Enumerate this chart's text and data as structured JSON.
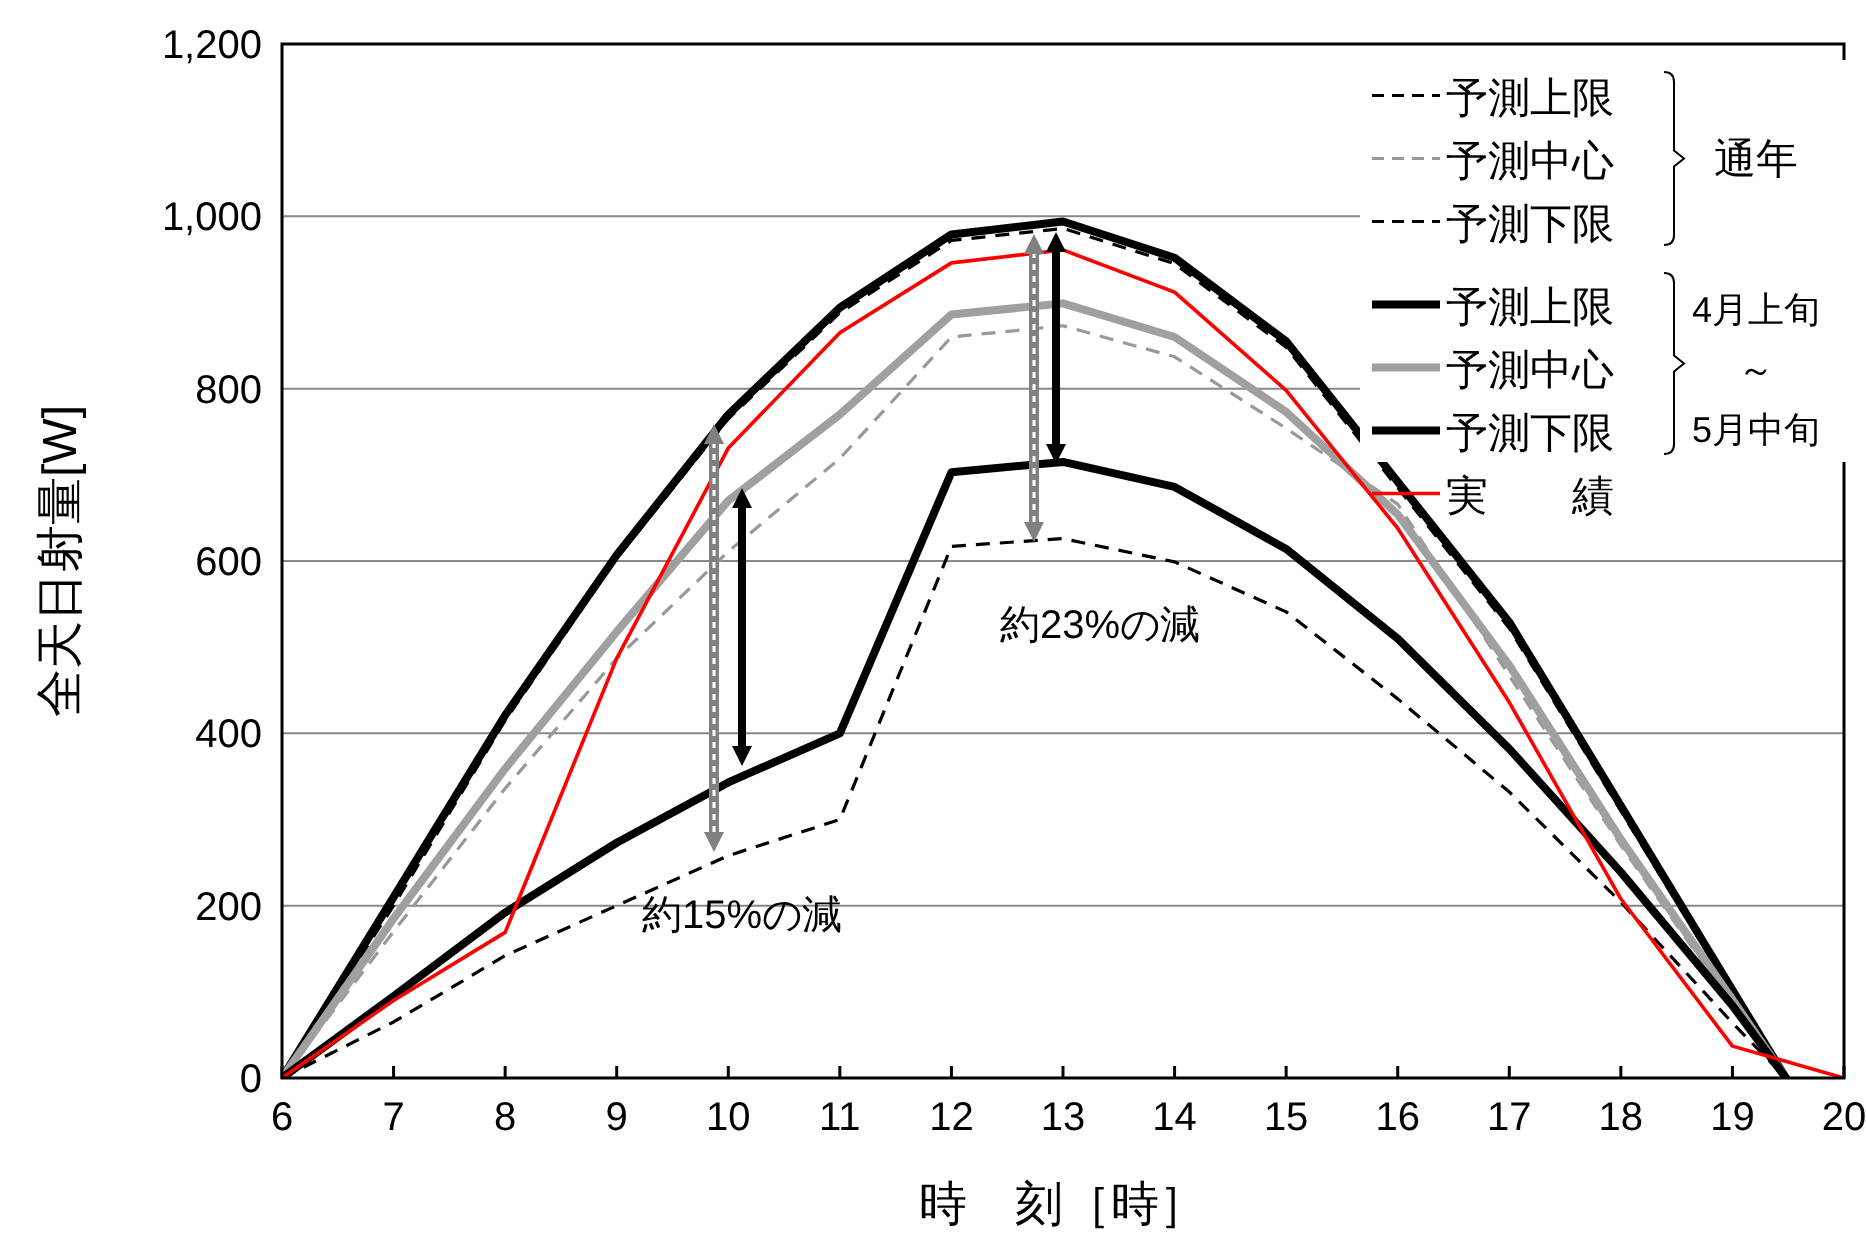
{
  "chart_data": {
    "type": "line",
    "xlabel": "時　刻［時］",
    "ylabel": "全天日射量[W]",
    "xlim": [
      6,
      20
    ],
    "xticks": [
      6,
      7,
      8,
      9,
      10,
      11,
      12,
      13,
      14,
      15,
      16,
      17,
      18,
      19,
      20
    ],
    "ylim": [
      0,
      1200
    ],
    "yticks": [
      0,
      200,
      400,
      600,
      800,
      {
        "value": 1000,
        "label": "1,000"
      },
      {
        "value": 1200,
        "label": "1,200"
      }
    ],
    "grid": "y",
    "legend": "top right",
    "marker": "none",
    "annotations": [
      "約15%の減",
      "約23%の減",
      "通年",
      "4月上旬",
      "～",
      "5月中旬"
    ],
    "series": [
      {
        "name": "予測上限",
        "color": "#000000",
        "line_style": "dashed",
        "x": [
          6,
          7,
          8,
          9,
          10,
          11,
          12,
          13,
          14,
          15,
          17,
          18,
          19,
          19.48
        ],
        "values": [
          0,
          200,
          415,
          603,
          765,
          888,
          972,
          986,
          945,
          848,
          522,
          310,
          98,
          0
        ]
      },
      {
        "name": "予測中心",
        "color": "#999999",
        "line_style": "dashed",
        "x": [
          6,
          7,
          8,
          9,
          10,
          11,
          12,
          13,
          14,
          15,
          16,
          17,
          18,
          19,
          19.48
        ],
        "values": [
          0,
          170,
          336,
          487,
          611,
          719,
          860,
          873,
          837,
          754,
          666,
          467,
          270,
          85,
          0
        ]
      },
      {
        "name": "予測下限",
        "color": "#000000",
        "line_style": "dashed",
        "x": [
          6,
          7,
          8,
          9,
          10,
          11,
          12,
          13,
          14,
          15,
          16,
          17,
          18,
          19,
          19.48
        ],
        "values": [
          0,
          65,
          142,
          200,
          258,
          300,
          617,
          626,
          599,
          541,
          440,
          332,
          204,
          64,
          0
        ]
      },
      {
        "name": "予測上限",
        "color": "#000000",
        "line_style": "solid",
        "x": [
          6,
          7,
          8,
          9,
          10,
          11,
          12,
          13,
          14,
          15,
          17,
          18,
          19,
          19.48
        ],
        "values": [
          0,
          210,
          421,
          607,
          770,
          894,
          979,
          994,
          952,
          855,
          529,
          316,
          102,
          0
        ]
      },
      {
        "name": "予測中心",
        "color": "#a0a0a0",
        "line_style": "solid",
        "x": [
          6,
          7,
          8,
          9,
          10,
          11,
          12,
          13,
          14,
          15,
          16,
          17,
          18,
          19,
          19.48
        ],
        "values": [
          0,
          185,
          359,
          518,
          670,
          770,
          886,
          899,
          860,
          773,
          654,
          479,
          277,
          91,
          0
        ]
      },
      {
        "name": "予測下限",
        "color": "#000000",
        "line_style": "solid",
        "x": [
          6,
          7,
          8,
          9,
          10,
          11,
          12,
          13,
          14,
          15,
          16,
          17,
          18,
          19,
          19.48
        ],
        "values": [
          0,
          95,
          192,
          273,
          343,
          400,
          703,
          715,
          686,
          614,
          510,
          382,
          239,
          84,
          0
        ]
      },
      {
        "name": "実　　績",
        "color": "#ff0000",
        "line_style": "solid",
        "x": [
          6,
          7,
          8,
          9,
          10,
          11,
          12,
          13,
          14,
          15,
          16,
          17,
          18,
          19,
          20
        ],
        "values": [
          0,
          90,
          169,
          487,
          731,
          865,
          946,
          961,
          912,
          798,
          638,
          436,
          208,
          37,
          0
        ]
      }
    ]
  }
}
